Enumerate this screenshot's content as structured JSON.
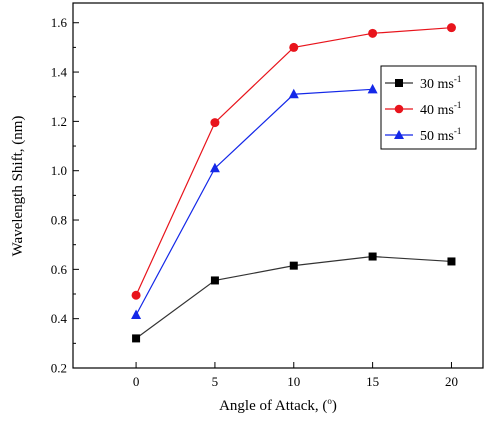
{
  "chart_data": {
    "type": "line",
    "x": [
      0,
      5,
      10,
      15,
      20
    ],
    "xlabel": "Angle of Attack, (",
    "xlabel_sup": "o",
    "xlabel_suffix": ")",
    "ylabel": "Wavelength Shift, (nm)",
    "xlim": [
      -4,
      22
    ],
    "ylim": [
      0.2,
      1.68
    ],
    "xticks": [
      0,
      5,
      10,
      15,
      20
    ],
    "yticks": [
      0.2,
      0.4,
      0.6,
      0.8,
      1.0,
      1.2,
      1.4,
      1.6
    ],
    "legend_position": "top-right",
    "series": [
      {
        "name": "30 ms",
        "name_sup": "-1",
        "marker": "square",
        "color": "#000000",
        "line_color": "#333333",
        "x": [
          0,
          5,
          10,
          15,
          20
        ],
        "values": [
          0.32,
          0.555,
          0.615,
          0.652,
          0.632
        ]
      },
      {
        "name": "40 ms",
        "name_sup": "-1",
        "marker": "circle",
        "color": "#e8141c",
        "line_color": "#e8141c",
        "x": [
          0,
          5,
          10,
          15,
          20
        ],
        "values": [
          0.495,
          1.195,
          1.5,
          1.557,
          1.58
        ]
      },
      {
        "name": "50 ms",
        "name_sup": "-1",
        "marker": "triangle",
        "color": "#1428e8",
        "line_color": "#1428e8",
        "x": [
          0,
          5,
          10,
          15
        ],
        "values": [
          0.415,
          1.01,
          1.31,
          1.33
        ]
      }
    ]
  }
}
